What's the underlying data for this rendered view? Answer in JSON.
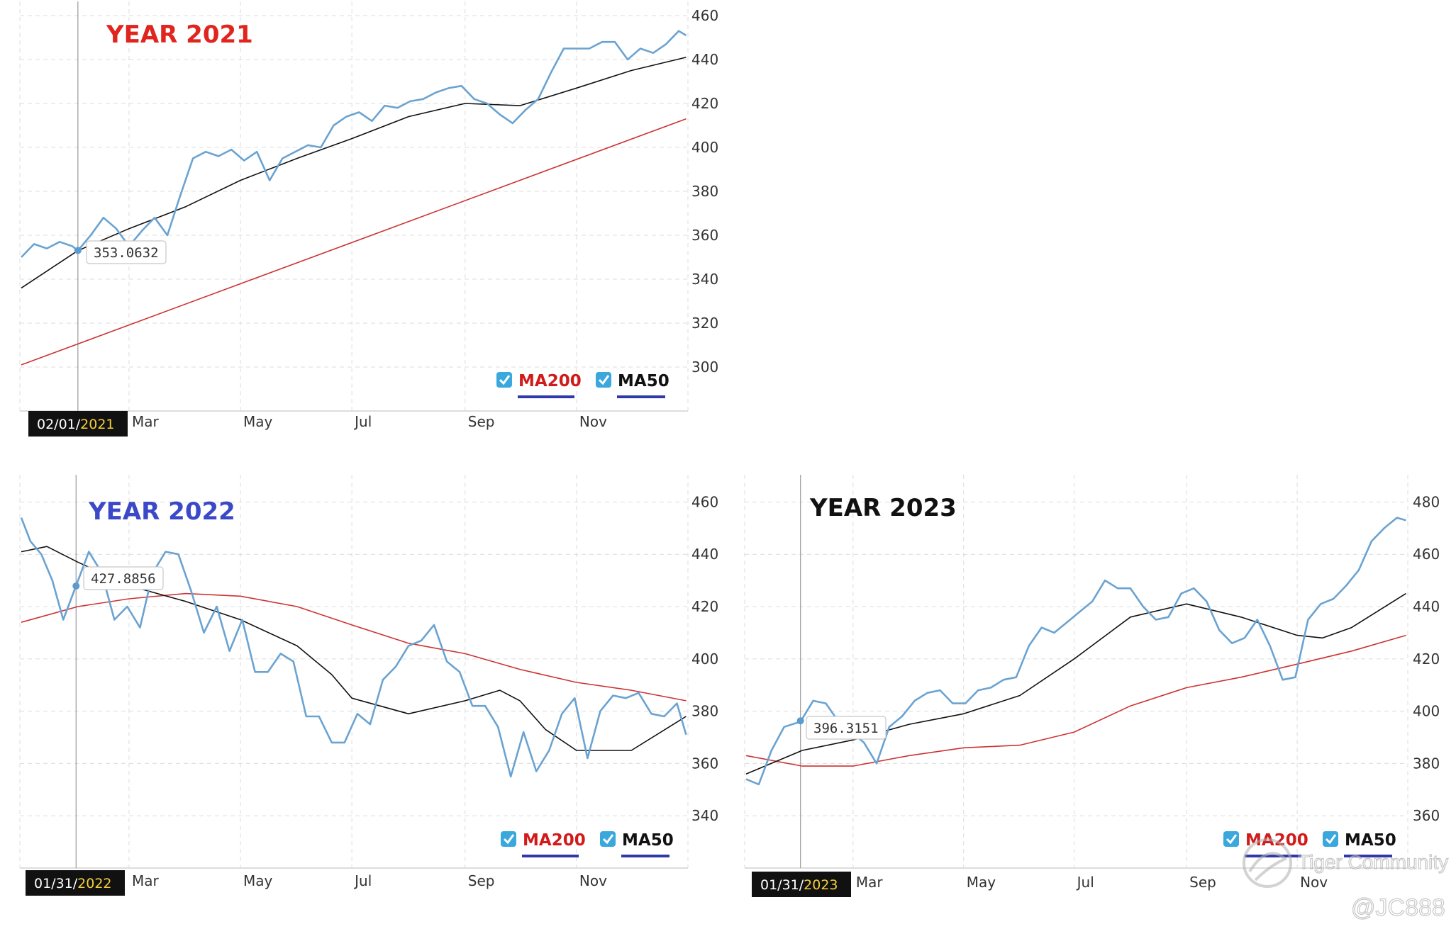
{
  "watermark": {
    "community": "Tiger Community",
    "handle": "@JC888"
  },
  "colors": {
    "price": "#6aa3d1",
    "ma50": "#111111",
    "ma200": "#cc3333",
    "grid": "#d9d9d9",
    "check": "#3aa7dd"
  },
  "chart_data": [
    {
      "type": "line",
      "title": "YEAR 2021",
      "title_color": "#e0241e",
      "x_months": [
        "Mar",
        "May",
        "Jul",
        "Sep",
        "Nov"
      ],
      "date_label": {
        "prefix": "02/01/",
        "year": "2021"
      },
      "tooltip": {
        "value": "353.0632",
        "date": "2021-02-01"
      },
      "legend": [
        "MA200",
        "MA50"
      ],
      "ylim": [
        280,
        460
      ],
      "yticks": [
        300,
        320,
        340,
        360,
        380,
        400,
        420,
        440,
        460
      ],
      "series": [
        {
          "name": "MA200",
          "color": "#cc3333",
          "x": [
            "2021-01-01",
            "2021-12-31"
          ],
          "y": [
            301,
            413
          ]
        },
        {
          "name": "MA50",
          "color": "#111111",
          "x": [
            "2021-01-01",
            "2021-02-01",
            "2021-03-01",
            "2021-04-01",
            "2021-05-01",
            "2021-06-01",
            "2021-07-01",
            "2021-08-01",
            "2021-09-01",
            "2021-10-01",
            "2021-11-01",
            "2021-12-01",
            "2021-12-31"
          ],
          "y": [
            336,
            353,
            363,
            373,
            385,
            395,
            404,
            414,
            420,
            419,
            427,
            435,
            441
          ]
        },
        {
          "name": "",
          "color": "#6aa3d1",
          "x": [
            "2021-01-01",
            "2021-01-08",
            "2021-01-15",
            "2021-01-22",
            "2021-01-29",
            "2021-02-01",
            "2021-02-08",
            "2021-02-15",
            "2021-02-22",
            "2021-03-01",
            "2021-03-08",
            "2021-03-15",
            "2021-03-22",
            "2021-03-29",
            "2021-04-05",
            "2021-04-12",
            "2021-04-19",
            "2021-04-26",
            "2021-05-03",
            "2021-05-10",
            "2021-05-17",
            "2021-05-24",
            "2021-05-31",
            "2021-06-07",
            "2021-06-14",
            "2021-06-21",
            "2021-06-28",
            "2021-07-05",
            "2021-07-12",
            "2021-07-19",
            "2021-07-26",
            "2021-08-02",
            "2021-08-09",
            "2021-08-16",
            "2021-08-23",
            "2021-08-30",
            "2021-09-06",
            "2021-09-13",
            "2021-09-20",
            "2021-09-27",
            "2021-10-04",
            "2021-10-11",
            "2021-10-18",
            "2021-10-25",
            "2021-11-01",
            "2021-11-08",
            "2021-11-15",
            "2021-11-22",
            "2021-11-29",
            "2021-12-06",
            "2021-12-13",
            "2021-12-20",
            "2021-12-27",
            "2021-12-31"
          ],
          "y": [
            350,
            356,
            354,
            357,
            355,
            353,
            360,
            368,
            363,
            355,
            362,
            368,
            360,
            378,
            395,
            398,
            396,
            399,
            394,
            398,
            385,
            395,
            398,
            401,
            400,
            410,
            414,
            416,
            412,
            419,
            418,
            421,
            422,
            425,
            427,
            428,
            422,
            420,
            415,
            411,
            417,
            422,
            434,
            445,
            445,
            445,
            448,
            448,
            440,
            445,
            443,
            447,
            453,
            451
          ]
        }
      ]
    },
    {
      "type": "line",
      "title": "YEAR 2022",
      "title_color": "#3b49c9",
      "x_months": [
        "Mar",
        "May",
        "Jul",
        "Sep",
        "Nov"
      ],
      "date_label": {
        "prefix": "01/31/",
        "year": "2022"
      },
      "tooltip": {
        "value": "427.8856",
        "date": "2022-01-31"
      },
      "legend": [
        "MA200",
        "MA50"
      ],
      "ylim": [
        320,
        465
      ],
      "yticks": [
        340,
        360,
        380,
        400,
        420,
        440,
        460
      ],
      "series": [
        {
          "name": "MA200",
          "color": "#cc3333",
          "x": [
            "2022-01-01",
            "2022-02-01",
            "2022-03-01",
            "2022-04-01",
            "2022-05-01",
            "2022-06-01",
            "2022-07-01",
            "2022-08-01",
            "2022-09-01",
            "2022-10-01",
            "2022-11-01",
            "2022-12-01",
            "2022-12-31"
          ],
          "y": [
            414,
            420,
            423,
            425,
            424,
            420,
            413,
            406,
            402,
            396,
            391,
            388,
            384
          ]
        },
        {
          "name": "MA50",
          "color": "#111111",
          "x": [
            "2022-01-01",
            "2022-01-15",
            "2022-02-01",
            "2022-03-01",
            "2022-04-01",
            "2022-05-01",
            "2022-06-01",
            "2022-06-20",
            "2022-07-01",
            "2022-08-01",
            "2022-09-01",
            "2022-09-20",
            "2022-10-01",
            "2022-10-15",
            "2022-11-01",
            "2022-12-01",
            "2022-12-31"
          ],
          "y": [
            441,
            443,
            437,
            428,
            422,
            415,
            405,
            394,
            385,
            379,
            384,
            388,
            384,
            373,
            365,
            365,
            378
          ]
        },
        {
          "name": "",
          "color": "#6aa3d1",
          "x": [
            "2022-01-01",
            "2022-01-06",
            "2022-01-12",
            "2022-01-18",
            "2022-01-24",
            "2022-01-31",
            "2022-02-07",
            "2022-02-14",
            "2022-02-21",
            "2022-02-28",
            "2022-03-07",
            "2022-03-14",
            "2022-03-21",
            "2022-03-28",
            "2022-04-04",
            "2022-04-11",
            "2022-04-18",
            "2022-04-25",
            "2022-05-02",
            "2022-05-09",
            "2022-05-16",
            "2022-05-23",
            "2022-05-30",
            "2022-06-06",
            "2022-06-13",
            "2022-06-20",
            "2022-06-27",
            "2022-07-04",
            "2022-07-11",
            "2022-07-18",
            "2022-07-25",
            "2022-08-01",
            "2022-08-08",
            "2022-08-15",
            "2022-08-22",
            "2022-08-29",
            "2022-09-05",
            "2022-09-12",
            "2022-09-19",
            "2022-09-26",
            "2022-10-03",
            "2022-10-10",
            "2022-10-17",
            "2022-10-24",
            "2022-10-31",
            "2022-11-07",
            "2022-11-14",
            "2022-11-21",
            "2022-11-28",
            "2022-12-05",
            "2022-12-12",
            "2022-12-19",
            "2022-12-26",
            "2022-12-31"
          ],
          "y": [
            454,
            445,
            440,
            430,
            415,
            428,
            441,
            433,
            415,
            420,
            412,
            433,
            441,
            440,
            426,
            410,
            420,
            403,
            415,
            395,
            395,
            402,
            399,
            378,
            378,
            368,
            368,
            379,
            375,
            392,
            397,
            405,
            407,
            413,
            399,
            395,
            382,
            382,
            374,
            355,
            372,
            357,
            365,
            379,
            385,
            362,
            380,
            386,
            385,
            387,
            379,
            378,
            383,
            371
          ]
        }
      ]
    },
    {
      "type": "line",
      "title": "YEAR 2023",
      "title_color": "#111111",
      "x_months": [
        "Mar",
        "May",
        "Jul",
        "Sep",
        "Nov"
      ],
      "date_label": {
        "prefix": "01/31/",
        "year": "2023"
      },
      "tooltip": {
        "value": "396.3151",
        "date": "2023-01-31"
      },
      "legend": [
        "MA200",
        "MA50"
      ],
      "ylim": [
        340,
        485
      ],
      "yticks": [
        360,
        380,
        400,
        420,
        440,
        460,
        480
      ],
      "series": [
        {
          "name": "MA200",
          "color": "#cc3333",
          "x": [
            "2023-01-01",
            "2023-02-01",
            "2023-03-01",
            "2023-04-01",
            "2023-05-01",
            "2023-06-01",
            "2023-07-01",
            "2023-08-01",
            "2023-09-01",
            "2023-10-01",
            "2023-11-01",
            "2023-12-01",
            "2023-12-31"
          ],
          "y": [
            383,
            379,
            379,
            383,
            386,
            387,
            392,
            402,
            409,
            413,
            418,
            423,
            429
          ]
        },
        {
          "name": "MA50",
          "color": "#111111",
          "x": [
            "2023-01-01",
            "2023-02-01",
            "2023-03-01",
            "2023-04-01",
            "2023-05-01",
            "2023-06-01",
            "2023-07-01",
            "2023-08-01",
            "2023-09-01",
            "2023-10-01",
            "2023-11-01",
            "2023-11-15",
            "2023-12-01",
            "2023-12-31"
          ],
          "y": [
            376,
            385,
            389,
            395,
            399,
            406,
            420,
            436,
            441,
            436,
            429,
            428,
            432,
            445
          ]
        },
        {
          "name": "",
          "color": "#6aa3d1",
          "x": [
            "2023-01-01",
            "2023-01-08",
            "2023-01-15",
            "2023-01-22",
            "2023-01-31",
            "2023-02-07",
            "2023-02-14",
            "2023-02-21",
            "2023-02-28",
            "2023-03-07",
            "2023-03-14",
            "2023-03-21",
            "2023-03-28",
            "2023-04-04",
            "2023-04-11",
            "2023-04-18",
            "2023-04-25",
            "2023-05-02",
            "2023-05-09",
            "2023-05-16",
            "2023-05-23",
            "2023-05-30",
            "2023-06-06",
            "2023-06-13",
            "2023-06-20",
            "2023-06-27",
            "2023-07-04",
            "2023-07-11",
            "2023-07-18",
            "2023-07-25",
            "2023-08-01",
            "2023-08-08",
            "2023-08-15",
            "2023-08-22",
            "2023-08-29",
            "2023-09-05",
            "2023-09-12",
            "2023-09-19",
            "2023-09-26",
            "2023-10-03",
            "2023-10-10",
            "2023-10-17",
            "2023-10-24",
            "2023-10-31",
            "2023-11-07",
            "2023-11-14",
            "2023-11-21",
            "2023-11-28",
            "2023-12-05",
            "2023-12-12",
            "2023-12-19",
            "2023-12-26",
            "2023-12-31"
          ],
          "y": [
            374,
            372,
            385,
            394,
            396,
            404,
            403,
            396,
            392,
            388,
            380,
            394,
            398,
            404,
            407,
            408,
            403,
            403,
            408,
            409,
            412,
            413,
            425,
            432,
            430,
            434,
            438,
            442,
            450,
            447,
            447,
            440,
            435,
            436,
            445,
            447,
            442,
            431,
            426,
            428,
            435,
            425,
            412,
            413,
            435,
            441,
            443,
            448,
            454,
            465,
            470,
            474,
            473
          ]
        }
      ]
    }
  ]
}
